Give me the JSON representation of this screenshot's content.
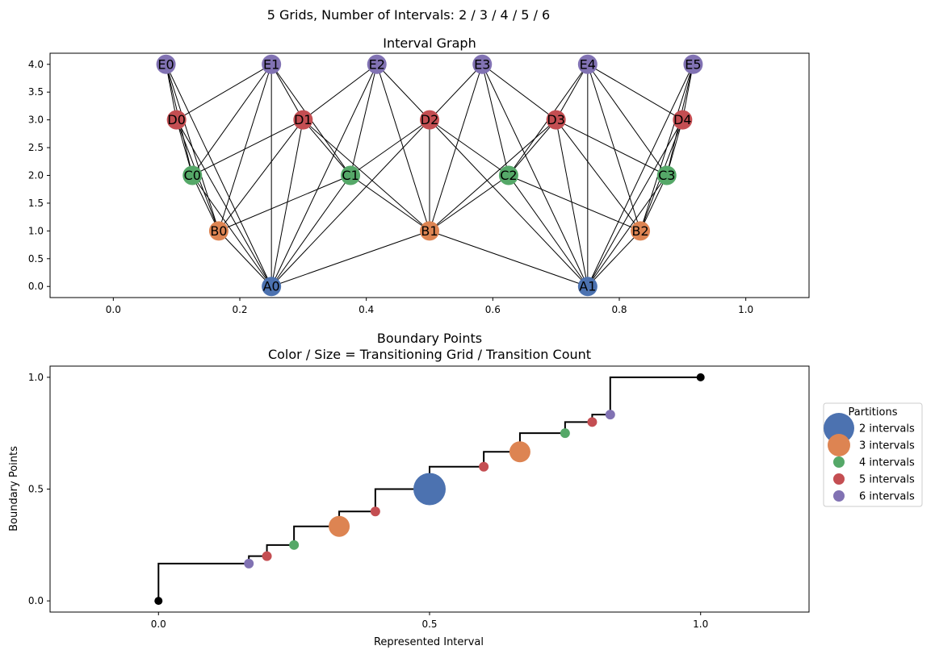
{
  "figure_title": "5 Grids, Number of Intervals: 2 / 3 / 4 / 5 / 6",
  "chart_data": [
    {
      "type": "network",
      "title": "Interval Graph",
      "xlabel": "",
      "ylabel": "",
      "xlim": [
        -0.1,
        1.1
      ],
      "ylim": [
        -0.2,
        4.2
      ],
      "xticks": [
        "0.0",
        "0.2",
        "0.4",
        "0.6",
        "0.8",
        "1.0"
      ],
      "xtick_values": [
        0.0,
        0.2,
        0.4,
        0.6,
        0.8,
        1.0
      ],
      "yticks": [
        "0.0",
        "0.5",
        "1.0",
        "1.5",
        "2.0",
        "2.5",
        "3.0",
        "3.5",
        "4.0"
      ],
      "ytick_values": [
        0.0,
        0.5,
        1.0,
        1.5,
        2.0,
        2.5,
        3.0,
        3.5,
        4.0
      ],
      "grid": false,
      "level_colors": {
        "A": "#4c72b0",
        "B": "#dd8452",
        "C": "#55a868",
        "D": "#c44e52",
        "E": "#8172b3"
      },
      "nodes": [
        {
          "label": "A0",
          "x": 0.25,
          "y": 0
        },
        {
          "label": "A1",
          "x": 0.75,
          "y": 0
        },
        {
          "label": "B0",
          "x": 0.1667,
          "y": 1
        },
        {
          "label": "B1",
          "x": 0.5,
          "y": 1
        },
        {
          "label": "B2",
          "x": 0.8333,
          "y": 1
        },
        {
          "label": "C0",
          "x": 0.125,
          "y": 2
        },
        {
          "label": "C1",
          "x": 0.375,
          "y": 2
        },
        {
          "label": "C2",
          "x": 0.625,
          "y": 2
        },
        {
          "label": "C3",
          "x": 0.875,
          "y": 2
        },
        {
          "label": "D0",
          "x": 0.1,
          "y": 3
        },
        {
          "label": "D1",
          "x": 0.3,
          "y": 3
        },
        {
          "label": "D2",
          "x": 0.5,
          "y": 3
        },
        {
          "label": "D3",
          "x": 0.7,
          "y": 3
        },
        {
          "label": "D4",
          "x": 0.9,
          "y": 3
        },
        {
          "label": "E0",
          "x": 0.0833,
          "y": 4
        },
        {
          "label": "E1",
          "x": 0.25,
          "y": 4
        },
        {
          "label": "E2",
          "x": 0.4167,
          "y": 4
        },
        {
          "label": "E3",
          "x": 0.5833,
          "y": 4
        },
        {
          "label": "E4",
          "x": 0.75,
          "y": 4
        },
        {
          "label": "E5",
          "x": 0.9167,
          "y": 4
        }
      ],
      "edges": "pairs of nodes from different levels whose intervals overlap"
    },
    {
      "type": "step-scatter",
      "title": "Boundary Points\nColor / Size = Transitioning Grid / Transition Count",
      "xlabel": "Represented Interval",
      "ylabel": "Boundary Points",
      "xlim": [
        -0.2,
        1.2
      ],
      "ylim": [
        -0.05,
        1.05
      ],
      "xticks": [
        "0.0",
        "0.5",
        "1.0"
      ],
      "xtick_values": [
        0.0,
        0.5,
        1.0
      ],
      "yticks": [
        "0.0",
        "0.5",
        "1.0"
      ],
      "ytick_values": [
        0.0,
        0.5,
        1.0
      ],
      "grid": false,
      "step_line": [
        [
          0,
          0
        ],
        [
          0,
          0.1667
        ],
        [
          0.1667,
          0.1667
        ],
        [
          0.1667,
          0.2
        ],
        [
          0.2,
          0.2
        ],
        [
          0.2,
          0.25
        ],
        [
          0.25,
          0.25
        ],
        [
          0.25,
          0.3333
        ],
        [
          0.3333,
          0.3333
        ],
        [
          0.3333,
          0.4
        ],
        [
          0.4,
          0.4
        ],
        [
          0.4,
          0.5
        ],
        [
          0.5,
          0.5
        ],
        [
          0.5,
          0.6
        ],
        [
          0.6,
          0.6
        ],
        [
          0.6,
          0.6667
        ],
        [
          0.6667,
          0.6667
        ],
        [
          0.6667,
          0.75
        ],
        [
          0.75,
          0.75
        ],
        [
          0.75,
          0.8
        ],
        [
          0.8,
          0.8
        ],
        [
          0.8,
          0.8333
        ],
        [
          0.8333,
          0.8333
        ],
        [
          0.8333,
          1.0
        ],
        [
          1.0,
          1.0
        ]
      ],
      "endpoints": [
        {
          "x": 0.0,
          "y": 0.0
        },
        {
          "x": 1.0,
          "y": 1.0
        }
      ],
      "points": [
        {
          "x": 0.1667,
          "y": 0.1667,
          "series": "6 intervals",
          "count": 1
        },
        {
          "x": 0.2,
          "y": 0.2,
          "series": "5 intervals",
          "count": 1
        },
        {
          "x": 0.25,
          "y": 0.25,
          "series": "4 intervals",
          "count": 1
        },
        {
          "x": 0.3333,
          "y": 0.3333,
          "series": "3 intervals",
          "count": 2
        },
        {
          "x": 0.4,
          "y": 0.4,
          "series": "5 intervals",
          "count": 1
        },
        {
          "x": 0.5,
          "y": 0.5,
          "series": "2 intervals",
          "count": 3
        },
        {
          "x": 0.6,
          "y": 0.6,
          "series": "5 intervals",
          "count": 1
        },
        {
          "x": 0.6667,
          "y": 0.6667,
          "series": "3 intervals",
          "count": 2
        },
        {
          "x": 0.75,
          "y": 0.75,
          "series": "4 intervals",
          "count": 1
        },
        {
          "x": 0.8,
          "y": 0.8,
          "series": "5 intervals",
          "count": 1
        },
        {
          "x": 0.8333,
          "y": 0.8333,
          "series": "6 intervals",
          "count": 1
        }
      ],
      "legend": {
        "title": "Partitions",
        "placement": "right",
        "entries": [
          {
            "name": "2 intervals",
            "color": "#4c72b0"
          },
          {
            "name": "3 intervals",
            "color": "#dd8452"
          },
          {
            "name": "4 intervals",
            "color": "#55a868"
          },
          {
            "name": "5 intervals",
            "color": "#c44e52"
          },
          {
            "name": "6 intervals",
            "color": "#8172b3"
          }
        ]
      }
    }
  ]
}
